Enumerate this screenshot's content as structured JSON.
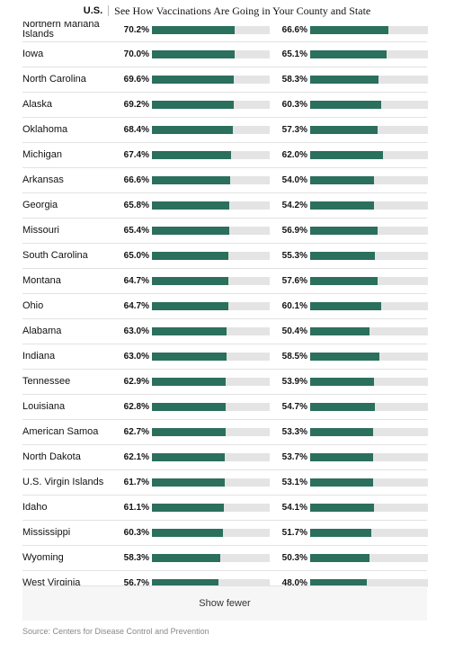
{
  "header": {
    "section": "U.S.",
    "headline": "See How Vaccinations Are Going in Your County and State"
  },
  "colors": {
    "bar": "#2b6f5d",
    "track": "#e4e4e4"
  },
  "rows": [
    {
      "state": "Northern Mariana Islands",
      "a": "70.2%",
      "b": "66.6%",
      "av": 70.2,
      "bv": 66.6
    },
    {
      "state": "Iowa",
      "a": "70.0%",
      "b": "65.1%",
      "av": 70.0,
      "bv": 65.1
    },
    {
      "state": "North Carolina",
      "a": "69.6%",
      "b": "58.3%",
      "av": 69.6,
      "bv": 58.3
    },
    {
      "state": "Alaska",
      "a": "69.2%",
      "b": "60.3%",
      "av": 69.2,
      "bv": 60.3
    },
    {
      "state": "Oklahoma",
      "a": "68.4%",
      "b": "57.3%",
      "av": 68.4,
      "bv": 57.3
    },
    {
      "state": "Michigan",
      "a": "67.4%",
      "b": "62.0%",
      "av": 67.4,
      "bv": 62.0
    },
    {
      "state": "Arkansas",
      "a": "66.6%",
      "b": "54.0%",
      "av": 66.6,
      "bv": 54.0
    },
    {
      "state": "Georgia",
      "a": "65.8%",
      "b": "54.2%",
      "av": 65.8,
      "bv": 54.2
    },
    {
      "state": "Missouri",
      "a": "65.4%",
      "b": "56.9%",
      "av": 65.4,
      "bv": 56.9
    },
    {
      "state": "South Carolina",
      "a": "65.0%",
      "b": "55.3%",
      "av": 65.0,
      "bv": 55.3
    },
    {
      "state": "Montana",
      "a": "64.7%",
      "b": "57.6%",
      "av": 64.7,
      "bv": 57.6
    },
    {
      "state": "Ohio",
      "a": "64.7%",
      "b": "60.1%",
      "av": 64.7,
      "bv": 60.1
    },
    {
      "state": "Alabama",
      "a": "63.0%",
      "b": "50.4%",
      "av": 63.0,
      "bv": 50.4
    },
    {
      "state": "Indiana",
      "a": "63.0%",
      "b": "58.5%",
      "av": 63.0,
      "bv": 58.5
    },
    {
      "state": "Tennessee",
      "a": "62.9%",
      "b": "53.9%",
      "av": 62.9,
      "bv": 53.9
    },
    {
      "state": "Louisiana",
      "a": "62.8%",
      "b": "54.7%",
      "av": 62.8,
      "bv": 54.7
    },
    {
      "state": "American Samoa",
      "a": "62.7%",
      "b": "53.3%",
      "av": 62.7,
      "bv": 53.3
    },
    {
      "state": "North Dakota",
      "a": "62.1%",
      "b": "53.7%",
      "av": 62.1,
      "bv": 53.7
    },
    {
      "state": "U.S. Virgin Islands",
      "a": "61.7%",
      "b": "53.1%",
      "av": 61.7,
      "bv": 53.1
    },
    {
      "state": "Idaho",
      "a": "61.1%",
      "b": "54.1%",
      "av": 61.1,
      "bv": 54.1
    },
    {
      "state": "Mississippi",
      "a": "60.3%",
      "b": "51.7%",
      "av": 60.3,
      "bv": 51.7
    },
    {
      "state": "Wyoming",
      "a": "58.3%",
      "b": "50.3%",
      "av": 58.3,
      "bv": 50.3
    },
    {
      "state": "West Virginia",
      "a": "56.7%",
      "b": "48.0%",
      "av": 56.7,
      "bv": 48.0
    }
  ],
  "show_fewer_label": "Show fewer",
  "source": "Source: Centers for Disease Control and Prevention"
}
